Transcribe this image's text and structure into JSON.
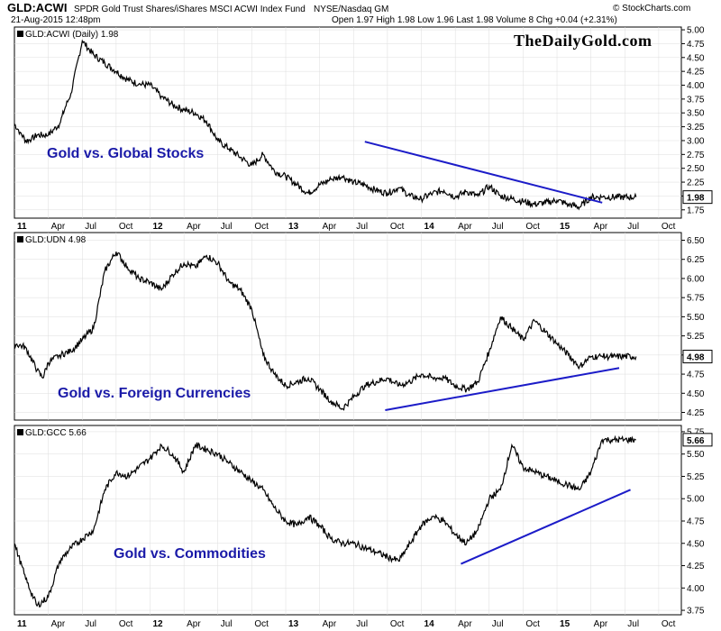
{
  "header": {
    "symbol": "GLD:ACWI",
    "description": "SPDR Gold Trust Shares/iShares MSCI ACWI Index Fund",
    "exchange": "NYSE/Nasdaq GM",
    "timestamp": "21-Aug-2015 12:48pm",
    "ohlc": "Open 1.97  High 1.98  Low 1.96  Last 1.98  Volume 8  Chg +0.04 (+2.31%)",
    "stockcharts": "© StockCharts.com",
    "brand": "TheDailyGold.com"
  },
  "chart_data": [
    {
      "type": "line",
      "title": "GLD:ACWI (Daily) 1.98",
      "annotation": "Gold vs. Global Stocks",
      "last_label": "1.98",
      "ylim": [
        1.6,
        5.05
      ],
      "yticks": [
        "1.75",
        "2.00",
        "2.25",
        "2.50",
        "2.75",
        "3.00",
        "3.25",
        "3.50",
        "3.75",
        "4.00",
        "4.25",
        "4.50",
        "4.75",
        "5.00"
      ],
      "series": [
        {
          "name": "GLD:ACWI",
          "x": [
            0,
            0.5,
            1,
            1.5,
            2,
            3,
            3.5,
            4,
            4.5,
            5,
            6,
            7,
            8,
            9,
            10,
            11,
            12,
            13,
            14,
            15,
            16,
            17,
            18,
            19,
            20,
            21,
            22,
            23,
            24,
            25,
            26,
            27,
            28,
            29,
            30,
            31,
            32,
            33,
            34,
            35,
            36,
            37,
            38,
            39,
            40,
            41,
            42,
            43,
            44,
            45,
            46,
            47,
            48,
            49,
            50,
            51,
            52,
            53,
            54,
            55
          ],
          "values": [
            3.3,
            3.15,
            3.0,
            3.02,
            3.1,
            3.1,
            3.2,
            3.3,
            3.6,
            3.85,
            4.8,
            4.55,
            4.4,
            4.25,
            4.1,
            4.02,
            4.0,
            3.8,
            3.65,
            3.55,
            3.5,
            3.35,
            3.0,
            2.85,
            2.7,
            2.55,
            2.75,
            2.45,
            2.35,
            2.2,
            2.05,
            2.2,
            2.3,
            2.35,
            2.25,
            2.2,
            2.1,
            2.05,
            2.15,
            2.0,
            1.95,
            2.05,
            2.1,
            1.98,
            2.08,
            2.0,
            2.18,
            2.0,
            1.95,
            1.9,
            1.85,
            1.88,
            1.92,
            1.85,
            1.8,
            1.98,
            1.98,
            1.98,
            1.98,
            1.98
          ]
        }
      ],
      "trendline": {
        "x": [
          31.0,
          52.0
        ],
        "values": [
          2.98,
          1.88
        ]
      }
    },
    {
      "type": "line",
      "title": "GLD:UDN 4.98",
      "annotation": "Gold vs. Foreign Currencies",
      "last_label": "4.98",
      "ylim": [
        4.15,
        6.6
      ],
      "yticks": [
        "4.25",
        "4.50",
        "4.75",
        "5.00",
        "5.25",
        "5.50",
        "5.75",
        "6.00",
        "6.25",
        "6.50"
      ],
      "series": [
        {
          "name": "GLD:UDN",
          "x": [
            0,
            1,
            2,
            2.5,
            3,
            4,
            5,
            6,
            7,
            8,
            9,
            10,
            11,
            12,
            13,
            14,
            15,
            16,
            17,
            18,
            19,
            20,
            21,
            22,
            23,
            24,
            25,
            26,
            27,
            28,
            29,
            30,
            31,
            32,
            33,
            34,
            35,
            36,
            37,
            38,
            39,
            40,
            41,
            42,
            43,
            44,
            45,
            46,
            47,
            48,
            49,
            50,
            51,
            52,
            53,
            54,
            55
          ],
          "values": [
            5.15,
            5.1,
            4.8,
            4.7,
            4.9,
            5.0,
            5.05,
            5.2,
            5.35,
            6.1,
            6.35,
            6.15,
            6.0,
            5.95,
            5.85,
            6.05,
            6.2,
            6.15,
            6.3,
            6.2,
            5.95,
            5.85,
            5.6,
            5.0,
            4.75,
            4.6,
            4.65,
            4.7,
            4.55,
            4.4,
            4.3,
            4.45,
            4.6,
            4.65,
            4.7,
            4.6,
            4.65,
            4.75,
            4.7,
            4.7,
            4.6,
            4.55,
            4.65,
            5.05,
            5.5,
            5.35,
            5.2,
            5.45,
            5.3,
            5.15,
            5.0,
            4.85,
            4.98,
            4.98,
            4.98,
            4.98,
            4.98
          ]
        }
      ],
      "trendline": {
        "x": [
          32.8,
          53.5
        ],
        "values": [
          4.28,
          4.83
        ]
      }
    },
    {
      "type": "line",
      "title": "GLD:GCC 5.66",
      "annotation": "Gold vs. Commodities",
      "last_label": "5.66",
      "ylim": [
        3.7,
        5.82
      ],
      "yticks": [
        "3.75",
        "4.00",
        "4.25",
        "4.50",
        "4.75",
        "5.00",
        "5.25",
        "5.50",
        "5.75"
      ],
      "series": [
        {
          "name": "GLD:GCC",
          "x": [
            0,
            1,
            2,
            3,
            4,
            5,
            6,
            7,
            8,
            9,
            10,
            11,
            12,
            13,
            14,
            15,
            16,
            17,
            18,
            19,
            20,
            21,
            22,
            23,
            24,
            25,
            26,
            27,
            28,
            29,
            30,
            31,
            32,
            33,
            34,
            35,
            36,
            37,
            38,
            39,
            40,
            41,
            42,
            43,
            44,
            45,
            46,
            47,
            48,
            49,
            50,
            51,
            52,
            53,
            54,
            55
          ],
          "values": [
            4.5,
            4.1,
            3.8,
            3.9,
            4.3,
            4.45,
            4.55,
            4.65,
            5.1,
            5.3,
            5.25,
            5.35,
            5.45,
            5.6,
            5.5,
            5.3,
            5.6,
            5.55,
            5.5,
            5.4,
            5.3,
            5.2,
            5.1,
            4.9,
            4.75,
            4.7,
            4.8,
            4.7,
            4.55,
            4.5,
            4.5,
            4.45,
            4.4,
            4.35,
            4.3,
            4.5,
            4.7,
            4.8,
            4.75,
            4.6,
            4.5,
            4.65,
            5.0,
            5.1,
            5.6,
            5.35,
            5.3,
            5.25,
            5.2,
            5.15,
            5.1,
            5.3,
            5.66,
            5.66,
            5.66,
            5.66
          ]
        }
      ],
      "trendline": {
        "x": [
          39.5,
          54.5
        ],
        "values": [
          4.27,
          5.1
        ]
      }
    }
  ],
  "x_axis": {
    "labels": [
      {
        "text": "11",
        "m": 0,
        "year": true
      },
      {
        "text": "Apr",
        "m": 3
      },
      {
        "text": "Jul",
        "m": 6
      },
      {
        "text": "Oct",
        "m": 9
      },
      {
        "text": "12",
        "m": 12,
        "year": true
      },
      {
        "text": "Apr",
        "m": 15
      },
      {
        "text": "Jul",
        "m": 18
      },
      {
        "text": "Oct",
        "m": 21
      },
      {
        "text": "13",
        "m": 24,
        "year": true
      },
      {
        "text": "Apr",
        "m": 27
      },
      {
        "text": "Jul",
        "m": 30
      },
      {
        "text": "Oct",
        "m": 33
      },
      {
        "text": "14",
        "m": 36,
        "year": true
      },
      {
        "text": "Apr",
        "m": 39
      },
      {
        "text": "Jul",
        "m": 42
      },
      {
        "text": "Oct",
        "m": 45
      },
      {
        "text": "15",
        "m": 48,
        "year": true
      },
      {
        "text": "Apr",
        "m": 51
      },
      {
        "text": "Jul",
        "m": 54
      },
      {
        "text": "Oct",
        "m": 57
      }
    ]
  },
  "colors": {
    "price": "#000000",
    "trend": "#1c1cc8",
    "annotation": "#1a1aa8",
    "grid": "#dddddd"
  }
}
